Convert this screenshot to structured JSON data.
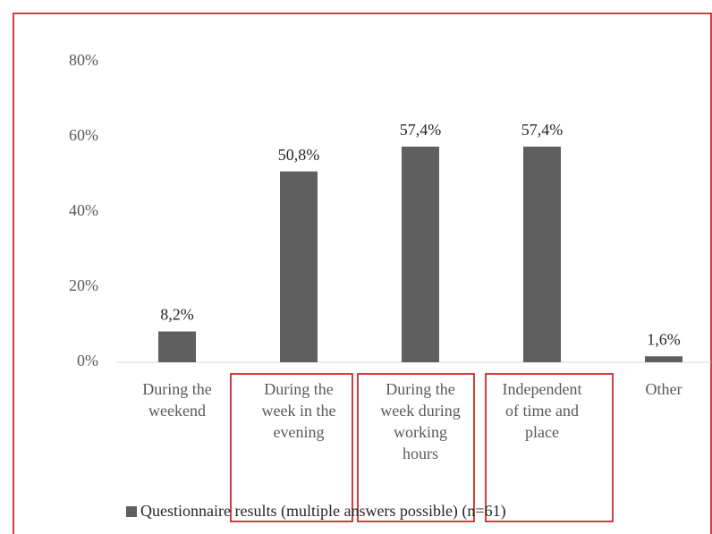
{
  "chart_data": {
    "type": "bar",
    "categories": [
      "During the weekend",
      "During the week in the evening",
      "During the week during working hours",
      "Independent of time and place",
      "Other"
    ],
    "series": [
      {
        "name": "Questionnaire results (multiple answers possible) (n=61)",
        "color": "#5f5f5f",
        "values": [
          8.2,
          50.8,
          57.4,
          57.4,
          1.6
        ],
        "value_labels": [
          "8,2%",
          "50,8%",
          "57,4%",
          "57,4%",
          "1,6%"
        ]
      }
    ],
    "ylim": [
      0,
      80
    ],
    "yticks": [
      {
        "value": 0,
        "label": "0%"
      },
      {
        "value": 20,
        "label": "20%"
      },
      {
        "value": 40,
        "label": "40%"
      },
      {
        "value": 60,
        "label": "60%"
      },
      {
        "value": 80,
        "label": "80%"
      }
    ],
    "grid": false
  }
}
